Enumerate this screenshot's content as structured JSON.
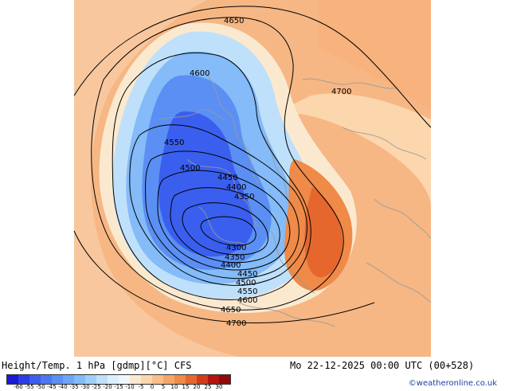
{
  "map": {
    "contour_labels": [
      "4650",
      "4600",
      "4700",
      "4550",
      "4500",
      "4450",
      "4400",
      "4350",
      "4300",
      "4350",
      "4400",
      "4450",
      "4500",
      "4550",
      "4600",
      "4650",
      "4700"
    ]
  },
  "footer": {
    "title": "Height/Temp. 1 hPa [gdmp][°C] CFS",
    "datetime": "Mo 22-12-2025 00:00 UTC (00+528)",
    "credit": "©weatheronline.co.uk"
  },
  "legend": {
    "tick_labels": [
      "-60",
      "-55",
      "-50",
      "-45",
      "-40",
      "-35",
      "-30",
      "-25",
      "-20",
      "-15",
      "-10",
      "-5",
      "0",
      "5",
      "10",
      "15",
      "20",
      "25",
      "30"
    ],
    "colors": [
      "#1a1ad9",
      "#2b3fe6",
      "#3a5fef",
      "#4b78f2",
      "#5b8ff4",
      "#6ea6f6",
      "#84bbf8",
      "#a0cffa",
      "#bfe0fb",
      "#dcefff",
      "#eef7ff",
      "#fbe9cf",
      "#fcd6ad",
      "#f9bf8a",
      "#f5a669",
      "#ef8a49",
      "#e5672e",
      "#d23c1c",
      "#b5140f",
      "#8f0a0a"
    ]
  }
}
